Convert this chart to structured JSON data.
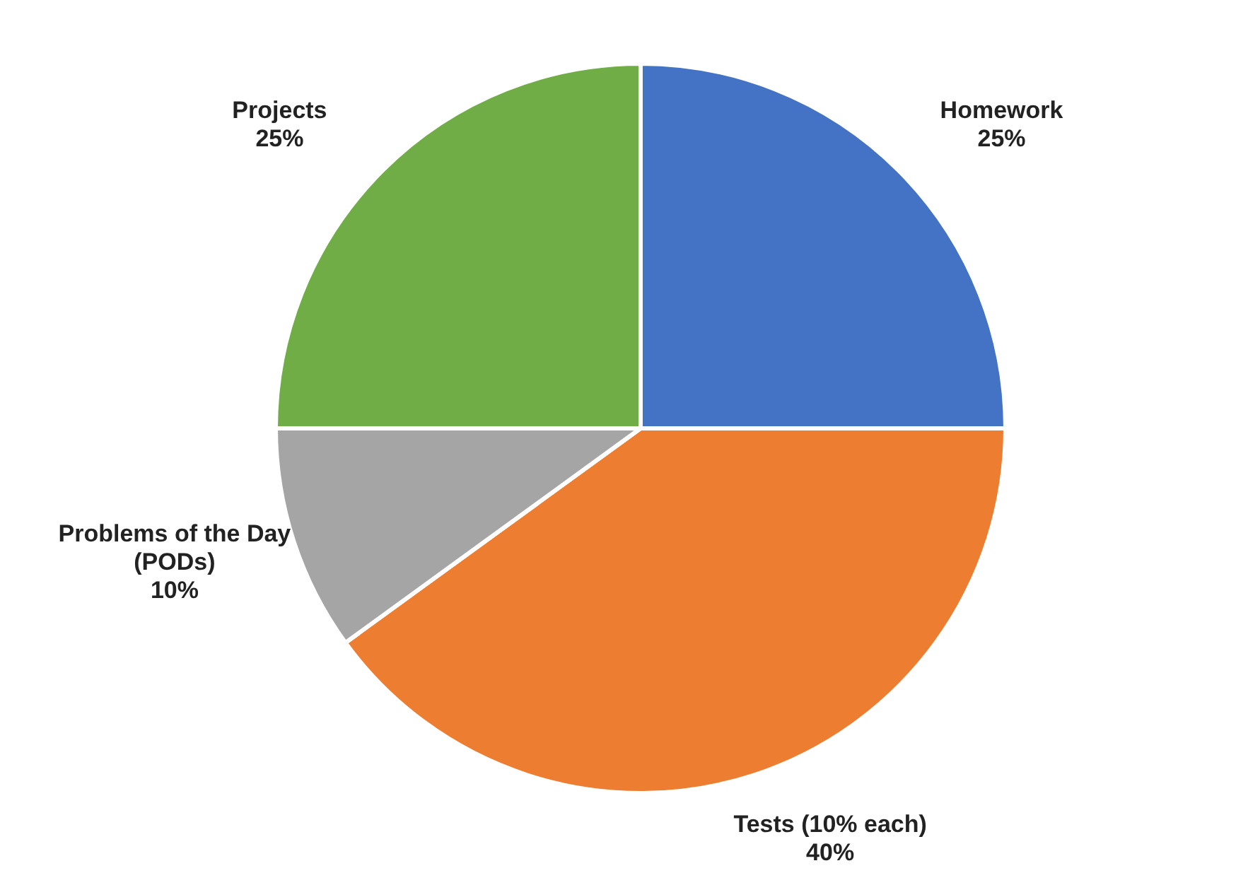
{
  "chart_data": {
    "type": "pie",
    "categories": [
      "Homework",
      "Tests (10% each)",
      "Problems of the Day (PODs)",
      "Projects"
    ],
    "values": [
      25,
      40,
      10,
      25
    ],
    "colors": [
      "#4472c4",
      "#ed7d31",
      "#a5a5a5",
      "#70ad47"
    ],
    "value_labels": [
      "25%",
      "40%",
      "10%",
      "25%"
    ]
  }
}
